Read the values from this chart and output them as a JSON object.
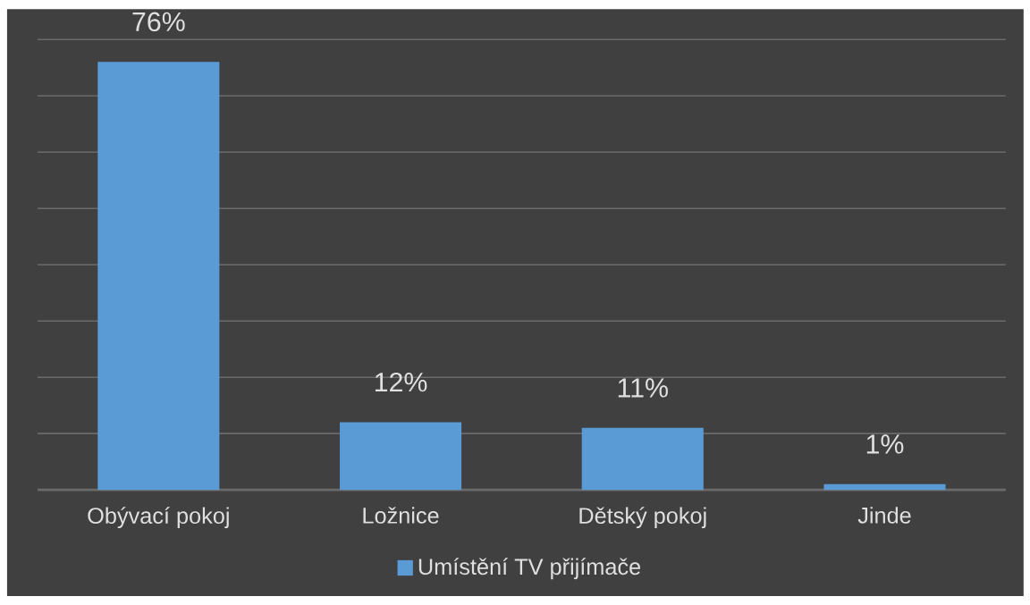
{
  "chart_data": {
    "type": "bar",
    "categories": [
      "Obývací pokoj",
      "Ložnice",
      "Dětský pokoj",
      "Jinde"
    ],
    "series": [
      {
        "name": "Umístění TV přijímače",
        "color": "#5b9bd5",
        "values": [
          76,
          12,
          11,
          1
        ],
        "value_labels": [
          "76%",
          "12%",
          "11%",
          "1%"
        ]
      }
    ],
    "ylim": [
      0,
      80
    ],
    "yticks": [
      {
        "value": 0,
        "label": null
      },
      {
        "value": 10,
        "label": null
      },
      {
        "value": 20,
        "label": null
      },
      {
        "value": 30,
        "label": null
      },
      {
        "value": 40,
        "label": null
      },
      {
        "value": 50,
        "label": null
      },
      {
        "value": 60,
        "label": null
      },
      {
        "value": 70,
        "label": null
      },
      {
        "value": 80,
        "label": null
      }
    ],
    "tick_labels": "x",
    "grid": "y",
    "legend": "bottom"
  }
}
